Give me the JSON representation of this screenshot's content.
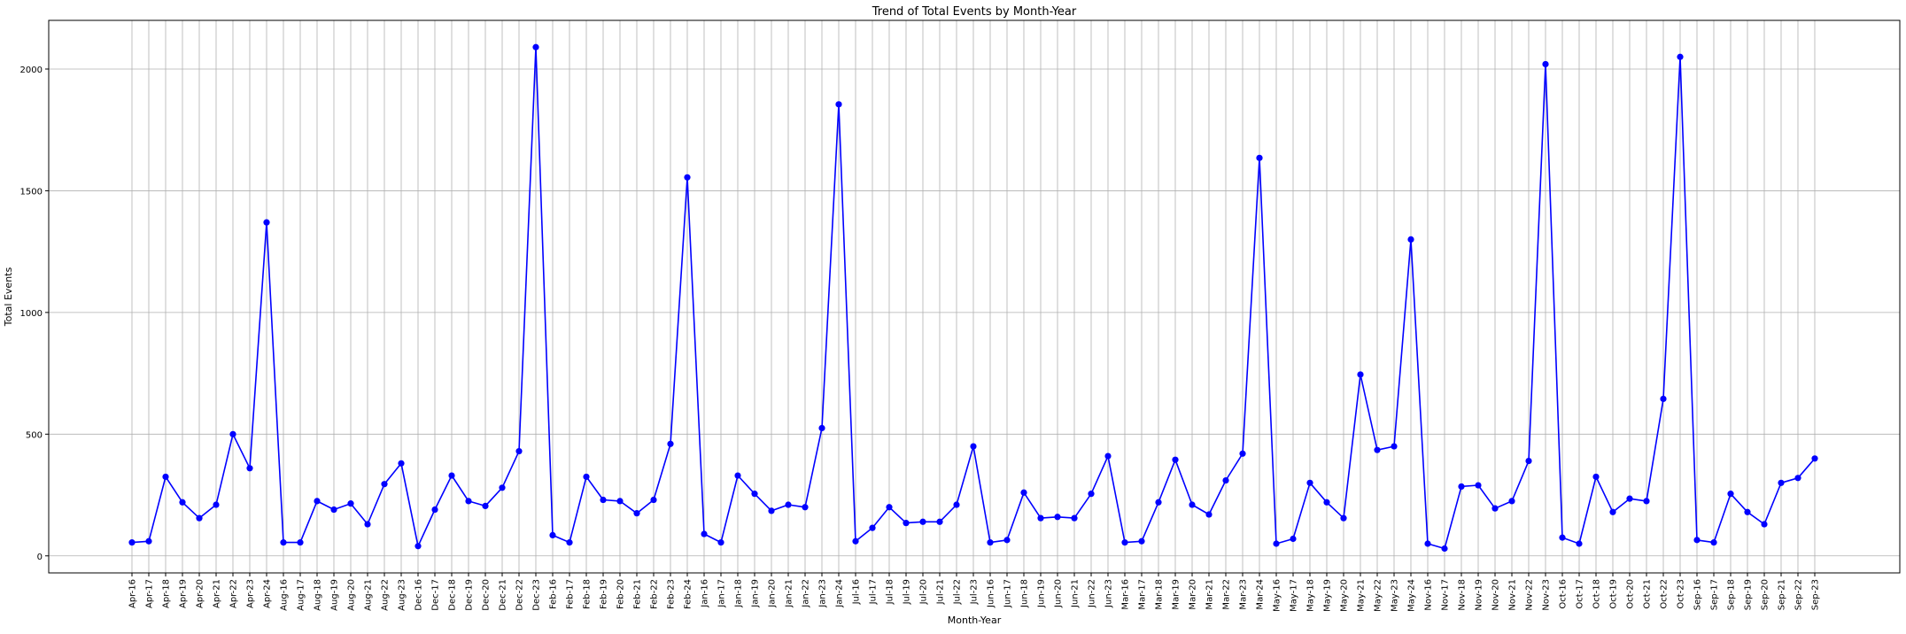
{
  "chart_data": {
    "type": "line",
    "title": "Trend of Total Events by Month-Year",
    "xlabel": "Month-Year",
    "ylabel": "Total Events",
    "ylim": [
      -70,
      2200
    ],
    "yticks": [
      0,
      500,
      1000,
      1500,
      2000
    ],
    "grid": true,
    "line_color": "#0000ff",
    "marker": "circle",
    "categories": [
      "Apr-16",
      "Apr-17",
      "Apr-18",
      "Apr-19",
      "Apr-20",
      "Apr-21",
      "Apr-22",
      "Apr-23",
      "Apr-24",
      "Aug-16",
      "Aug-17",
      "Aug-18",
      "Aug-19",
      "Aug-20",
      "Aug-21",
      "Aug-22",
      "Aug-23",
      "Dec-16",
      "Dec-17",
      "Dec-18",
      "Dec-19",
      "Dec-20",
      "Dec-21",
      "Dec-22",
      "Dec-23",
      "Feb-16",
      "Feb-17",
      "Feb-18",
      "Feb-19",
      "Feb-20",
      "Feb-21",
      "Feb-22",
      "Feb-23",
      "Feb-24",
      "Jan-16",
      "Jan-17",
      "Jan-18",
      "Jan-19",
      "Jan-20",
      "Jan-21",
      "Jan-22",
      "Jan-23",
      "Jan-24",
      "Jul-16",
      "Jul-17",
      "Jul-18",
      "Jul-19",
      "Jul-20",
      "Jul-21",
      "Jul-22",
      "Jul-23",
      "Jun-16",
      "Jun-17",
      "Jun-18",
      "Jun-19",
      "Jun-20",
      "Jun-21",
      "Jun-22",
      "Jun-23",
      "Mar-16",
      "Mar-17",
      "Mar-18",
      "Mar-19",
      "Mar-20",
      "Mar-21",
      "Mar-22",
      "Mar-23",
      "Mar-24",
      "May-16",
      "May-17",
      "May-18",
      "May-19",
      "May-20",
      "May-21",
      "May-22",
      "May-23",
      "May-24",
      "Nov-16",
      "Nov-17",
      "Nov-18",
      "Nov-19",
      "Nov-20",
      "Nov-21",
      "Nov-22",
      "Nov-23",
      "Oct-16",
      "Oct-17",
      "Oct-18",
      "Oct-19",
      "Oct-20",
      "Oct-21",
      "Oct-22",
      "Oct-23",
      "Sep-16",
      "Sep-17",
      "Sep-18",
      "Sep-19",
      "Sep-20",
      "Sep-21",
      "Sep-22",
      "Sep-23"
    ],
    "values": [
      55,
      60,
      325,
      220,
      155,
      210,
      500,
      360,
      1370,
      55,
      55,
      225,
      190,
      215,
      130,
      295,
      380,
      40,
      190,
      330,
      225,
      205,
      280,
      430,
      2090,
      85,
      55,
      325,
      230,
      225,
      175,
      230,
      460,
      1555,
      90,
      55,
      330,
      255,
      185,
      210,
      200,
      525,
      1855,
      60,
      115,
      200,
      135,
      140,
      140,
      210,
      450,
      55,
      65,
      260,
      155,
      160,
      155,
      255,
      410,
      55,
      60,
      220,
      395,
      210,
      170,
      310,
      420,
      1635,
      50,
      70,
      300,
      220,
      155,
      745,
      435,
      450,
      1300,
      50,
      30,
      285,
      290,
      195,
      225,
      390,
      2020,
      75,
      50,
      325,
      180,
      235,
      225,
      645,
      2050,
      65,
      55,
      255,
      180,
      130,
      300,
      320,
      400
    ]
  }
}
